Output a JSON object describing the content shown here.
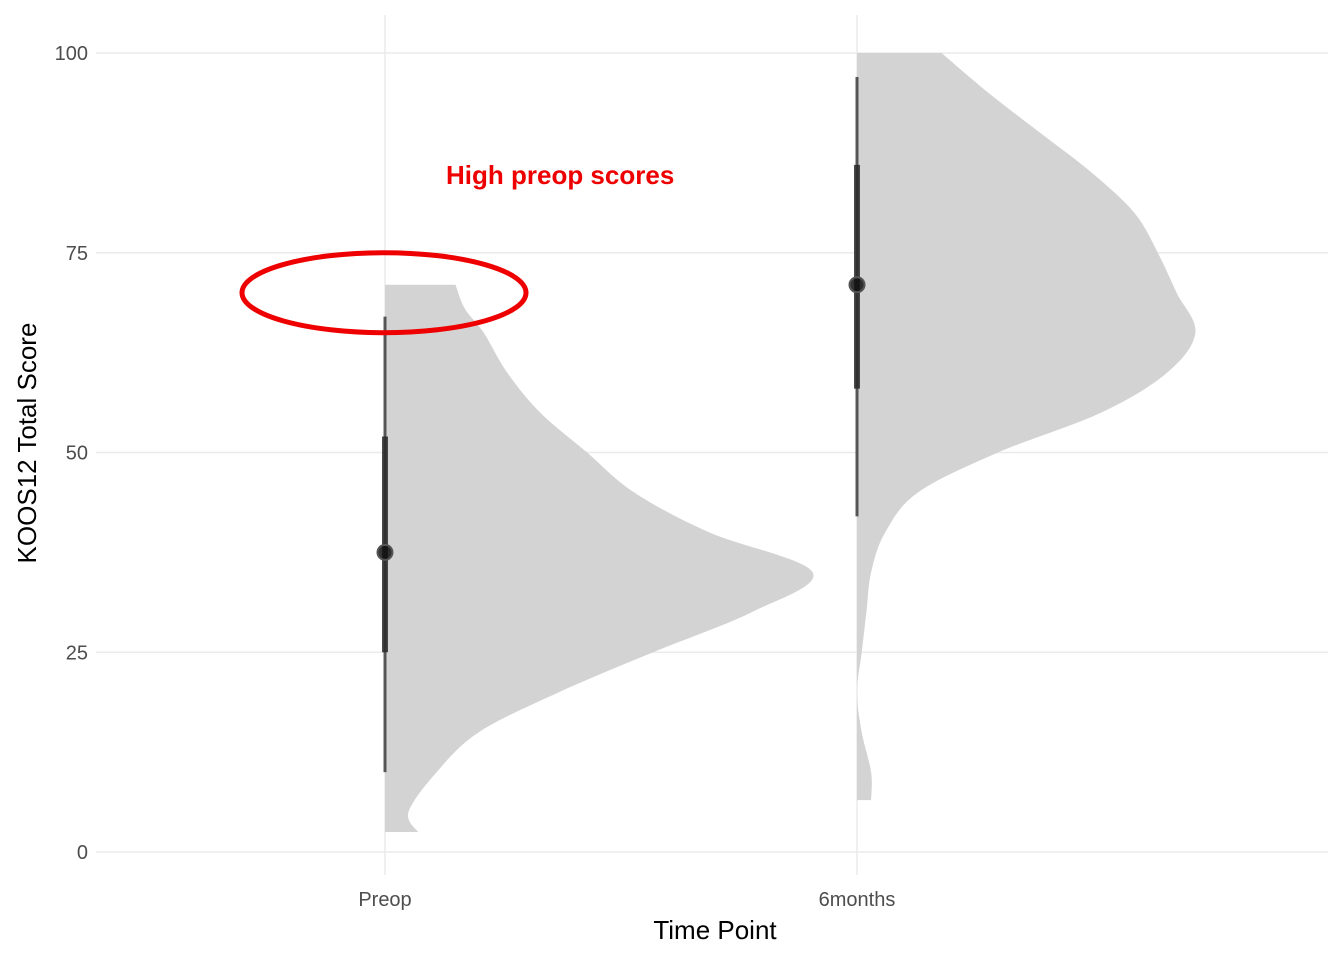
{
  "chart_data": {
    "type": "half-violin with point-interval",
    "xlabel": "Time Point",
    "ylabel": "KOOS12 Total Score",
    "categories": [
      "Preop",
      "6months"
    ],
    "ylim": [
      0,
      100
    ],
    "yticks": [
      0,
      25,
      50,
      75,
      100
    ],
    "grid": true,
    "legend": "none",
    "colors": {
      "violin": "#d3d3d3",
      "interval": "#000000",
      "annotation": "#ee0000",
      "grid": "#ebebeb"
    },
    "series": [
      {
        "category": "Preop",
        "median": 37.5,
        "interval_66": [
          25,
          52
        ],
        "interval_95": [
          10,
          67
        ],
        "density_profile": [
          [
            2.5,
            0.07
          ],
          [
            5,
            0.05
          ],
          [
            10,
            0.11
          ],
          [
            15,
            0.2
          ],
          [
            20,
            0.37
          ],
          [
            25,
            0.57
          ],
          [
            30,
            0.78
          ],
          [
            35,
            0.91
          ],
          [
            40,
            0.69
          ],
          [
            45,
            0.53
          ],
          [
            50,
            0.43
          ],
          [
            55,
            0.33
          ],
          [
            60,
            0.26
          ],
          [
            65,
            0.21
          ],
          [
            68,
            0.17
          ],
          [
            71,
            0.15
          ]
        ]
      },
      {
        "category": "6months",
        "median": 71,
        "interval_66": [
          58,
          86
        ],
        "interval_95": [
          42,
          97
        ],
        "density_profile": [
          [
            6.5,
            0.03
          ],
          [
            10,
            0.03
          ],
          [
            15,
            0.01
          ],
          [
            20,
            0.0
          ],
          [
            25,
            0.01
          ],
          [
            30,
            0.02
          ],
          [
            35,
            0.03
          ],
          [
            40,
            0.06
          ],
          [
            45,
            0.13
          ],
          [
            50,
            0.3
          ],
          [
            55,
            0.52
          ],
          [
            60,
            0.66
          ],
          [
            65,
            0.72
          ],
          [
            70,
            0.68
          ],
          [
            75,
            0.64
          ],
          [
            80,
            0.59
          ],
          [
            85,
            0.5
          ],
          [
            90,
            0.39
          ],
          [
            95,
            0.28
          ],
          [
            100,
            0.18
          ]
        ]
      }
    ],
    "annotations": {
      "label": "High preop scores",
      "highlight_ellipse_center_y": 70
    }
  }
}
